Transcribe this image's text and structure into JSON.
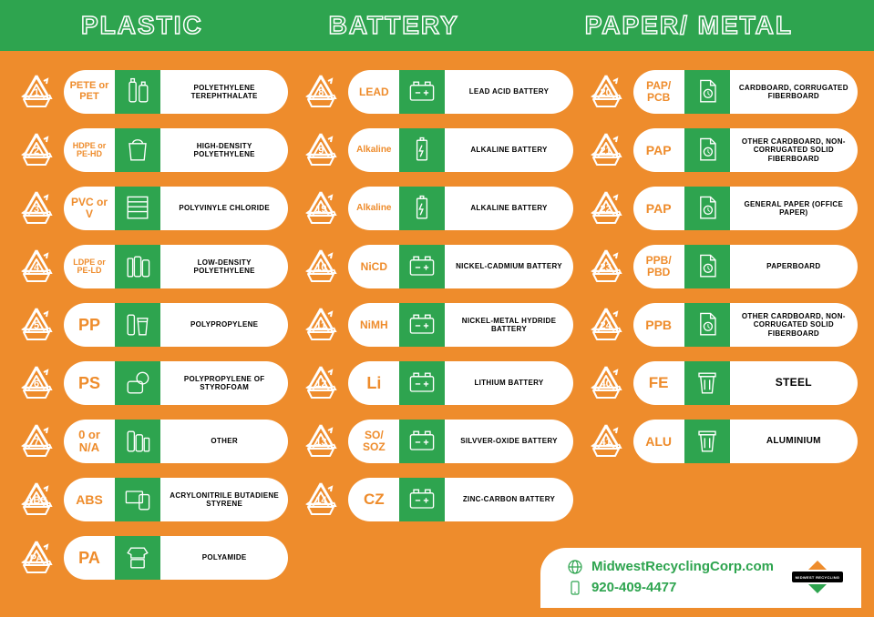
{
  "colors": {
    "header_bg": "#2ea44f",
    "body_bg": "#ee8c2c",
    "pill_bg": "#ffffff",
    "iconbox_bg": "#2ea44f",
    "abbr_color": "#ee8c2c",
    "footer_text": "#2ea44f",
    "logo_accent": "#ee8c2c"
  },
  "header": {
    "col1": "PLASTIC",
    "col2": "BATTERY",
    "col3": "PAPER/ METAL"
  },
  "columns": {
    "plastic": [
      {
        "num": "1",
        "abbr": "PETE or PET",
        "abbr_size": 11,
        "icon": "bottles",
        "desc": "POLYETHYLENE TEREPHTHALATE"
      },
      {
        "num": "2",
        "abbr": "HDPE or PE-HD",
        "abbr_size": 9,
        "icon": "bag",
        "desc": "HIGH-DENSITY POLYETHYLENE"
      },
      {
        "num": "3",
        "abbr": "PVC or V",
        "abbr_size": 12,
        "icon": "blinds",
        "desc": "POLYVINYLE CHLORIDE"
      },
      {
        "num": "4",
        "abbr": "LDPE or PE-LD",
        "abbr_size": 9,
        "icon": "bottles2",
        "desc": "LOW-DENSITY POLYETHYLENE"
      },
      {
        "num": "5",
        "abbr": "PP",
        "abbr_size": 18,
        "icon": "cup",
        "desc": "POLYPROPYLENE"
      },
      {
        "num": "6",
        "abbr": "PS",
        "abbr_size": 18,
        "icon": "foam",
        "desc": "POLYPROPYLENE OF STYROFOAM"
      },
      {
        "num": "7",
        "abbr": "0 or N/A",
        "abbr_size": 13,
        "icon": "misc",
        "desc": "OTHER"
      },
      {
        "num": "ABS",
        "abbr": "ABS",
        "abbr_size": 14,
        "icon": "devices",
        "desc": "ACRYLONITRILE BUTADIENE STYRENE"
      },
      {
        "num": "PA",
        "abbr": "PA",
        "abbr_size": 18,
        "icon": "clothes",
        "desc": "POLYAMIDE"
      }
    ],
    "battery": [
      {
        "num": "8",
        "abbr": "LEAD",
        "abbr_size": 12,
        "icon": "carbatt",
        "desc": "LEAD ACID BATTERY"
      },
      {
        "num": "9",
        "abbr": "Alkaline",
        "abbr_size": 10,
        "icon": "cellbatt",
        "desc": "ALKALINE BATTERY"
      },
      {
        "num": "19",
        "abbr": "Alkaline",
        "abbr_size": 10,
        "icon": "cellbatt",
        "desc": "ALKALINE BATTERY"
      },
      {
        "num": "10",
        "abbr": "NiCD",
        "abbr_size": 12,
        "icon": "carbatt",
        "desc": "NICKEL-CADMIUM BATTERY"
      },
      {
        "num": "11",
        "abbr": "NiMH",
        "abbr_size": 12,
        "icon": "carbatt",
        "desc": "NICKEL-METAL HYDRIDE BATTERY"
      },
      {
        "num": "12",
        "abbr": "Li",
        "abbr_size": 18,
        "icon": "carbatt",
        "desc": "LITHIUM BATTERY"
      },
      {
        "num": "13",
        "abbr": "SO/ SOZ",
        "abbr_size": 12,
        "icon": "carbatt",
        "desc": "SILVVER-OXIDE BATTERY"
      },
      {
        "num": "14",
        "abbr": "CZ",
        "abbr_size": 17,
        "icon": "carbatt",
        "desc": "ZINC-CARBON BATTERY"
      }
    ],
    "paper": [
      {
        "num": "20",
        "abbr": "PAP/ PCB",
        "abbr_size": 12,
        "icon": "doc",
        "desc": "CARDBOARD, CORRUGATED FIBERBOARD"
      },
      {
        "num": "21",
        "abbr": "PAP",
        "abbr_size": 14,
        "icon": "doc",
        "desc": "OTHER CARDBOARD, NON-CORRUGATED SOLID FIBERBOARD"
      },
      {
        "num": "22",
        "abbr": "PAP",
        "abbr_size": 14,
        "icon": "doc",
        "desc": "GENERAL PAPER (OFFICE PAPER)"
      },
      {
        "num": "23",
        "abbr": "PPB/ PBD",
        "abbr_size": 12,
        "icon": "doc",
        "desc": "PAPERBOARD"
      },
      {
        "num": "24",
        "abbr": "PPB",
        "abbr_size": 14,
        "icon": "doc",
        "desc": "OTHER CARDBOARD, NON-CORRUGATED SOLID FIBERBOARD"
      },
      {
        "num": "40",
        "abbr": "FE",
        "abbr_size": 17,
        "icon": "bin",
        "desc": "STEEL",
        "desc_size": 12
      },
      {
        "num": "41",
        "abbr": "ALU",
        "abbr_size": 14,
        "icon": "bin",
        "desc": "ALUMINIUM",
        "desc_size": 10
      }
    ]
  },
  "footer": {
    "website": "MidwestRecyclingCorp.com",
    "phone": "920-409-4477",
    "logo_text": "MIDWEST RECYCLING"
  }
}
